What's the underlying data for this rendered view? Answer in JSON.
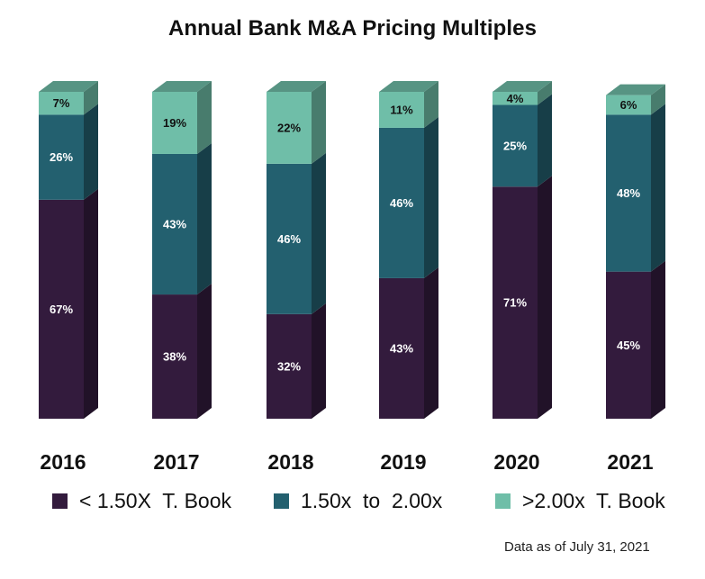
{
  "colors": {
    "under_150": "#331b3d",
    "between_150_200": "#23606f",
    "over_200": "#6fbea8",
    "text_dark": "#111111",
    "text_light": "#ffffff"
  },
  "chart_data": {
    "type": "bar",
    "stacked": true,
    "title": "Annual Bank M&A Pricing Multiples",
    "categories": [
      "2016",
      "2017",
      "2018",
      "2019",
      "2020",
      "2021"
    ],
    "series": [
      {
        "name": "< 1.50X  T. Book",
        "values": [
          67,
          38,
          32,
          43,
          71,
          45
        ],
        "labels": [
          "67%",
          "38%",
          "32%",
          "43%",
          "71%",
          "45%"
        ],
        "color": "#331b3d"
      },
      {
        "name": "1.50x  to  2.00x",
        "values": [
          26,
          43,
          46,
          46,
          25,
          48
        ],
        "labels": [
          "26%",
          "43%",
          "46%",
          "46%",
          "25%",
          "48%"
        ],
        "color": "#23606f"
      },
      {
        "name": ">2.00x  T. Book",
        "values": [
          7,
          19,
          22,
          11,
          4,
          6
        ],
        "labels": [
          "7%",
          "19%",
          "22%",
          "11%",
          "4%",
          "6%"
        ],
        "color": "#6fbea8"
      }
    ],
    "ylim": [
      0,
      100
    ],
    "legend_position": "bottom",
    "grid": false,
    "footnote": "Data as of July 31, 2021"
  }
}
